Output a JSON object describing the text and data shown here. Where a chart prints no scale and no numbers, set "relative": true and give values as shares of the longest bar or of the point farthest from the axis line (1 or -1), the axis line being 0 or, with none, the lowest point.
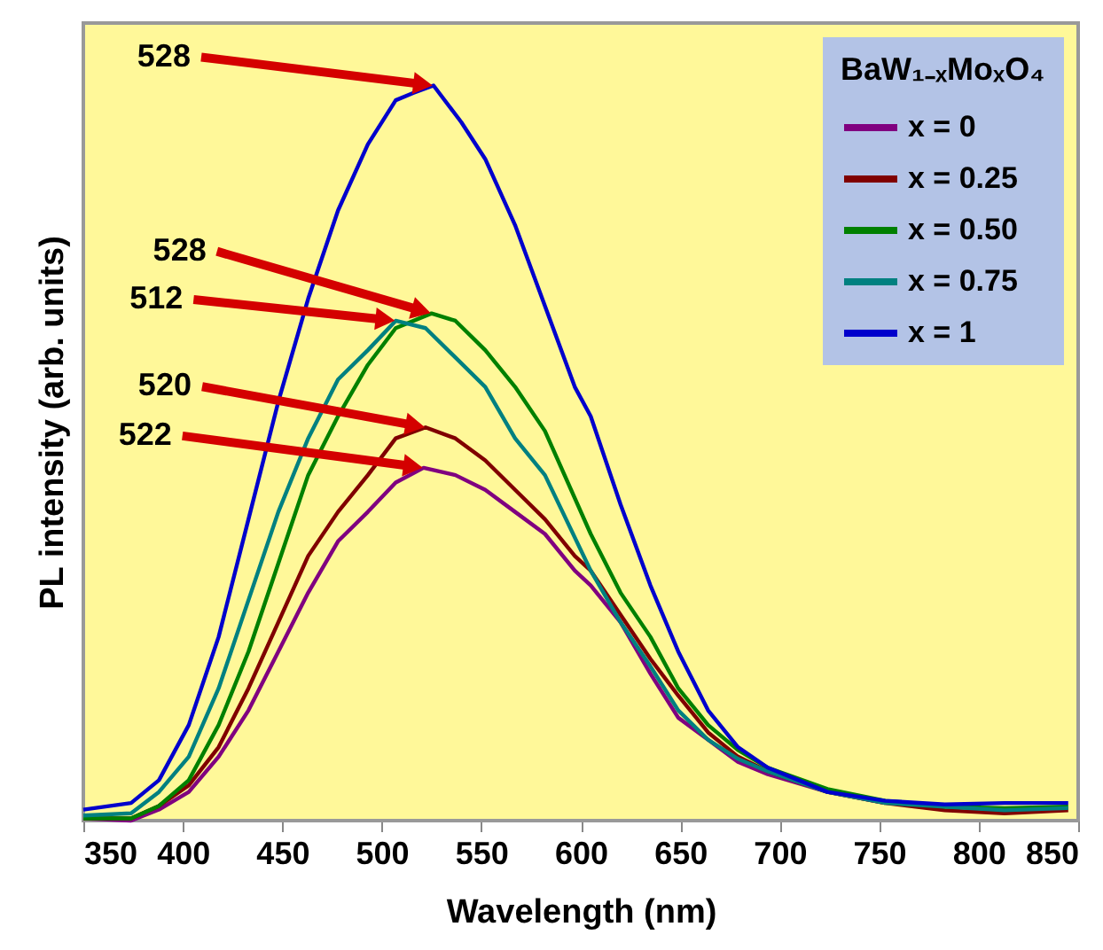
{
  "chart_data": {
    "type": "line",
    "relative": true,
    "xlabel": "Wavelength (nm)",
    "ylabel": "PL intensity (arb. units)",
    "legend_title": "BaW₁₋ₓMoₓO₄",
    "legend": "top right",
    "grid": false,
    "line_style": "solid",
    "marker": "none",
    "xlim": [
      350,
      850
    ],
    "xticks": [
      350,
      400,
      450,
      500,
      550,
      600,
      650,
      700,
      750,
      800,
      850
    ],
    "series": [
      {
        "name": "x = 0",
        "color": "#800080",
        "x": [
          350,
          374,
          388,
          403,
          418,
          433,
          448,
          463,
          478,
          493,
          507,
          521,
          537,
          552,
          567,
          582,
          597,
          605,
          620,
          635,
          649,
          664,
          679,
          694,
          724,
          753
        ],
        "values": [
          0.003,
          0.0,
          0.015,
          0.039,
          0.087,
          0.15,
          0.23,
          0.31,
          0.38,
          0.42,
          0.46,
          0.48,
          0.47,
          0.45,
          0.42,
          0.39,
          0.34,
          0.32,
          0.27,
          0.2,
          0.14,
          0.11,
          0.08,
          0.063,
          0.039,
          0.024
        ]
      },
      {
        "name": "x = 0.25",
        "color": "#800000",
        "x": [
          350,
          374,
          388,
          403,
          418,
          433,
          448,
          463,
          478,
          493,
          507,
          522,
          537,
          552,
          567,
          582,
          597,
          605,
          620,
          635,
          649,
          664,
          679,
          694,
          724,
          753,
          783,
          813,
          845
        ],
        "values": [
          0.003,
          0.003,
          0.02,
          0.048,
          0.1,
          0.18,
          0.27,
          0.36,
          0.42,
          0.47,
          0.52,
          0.535,
          0.52,
          0.49,
          0.45,
          0.41,
          0.36,
          0.34,
          0.28,
          0.22,
          0.17,
          0.12,
          0.087,
          0.067,
          0.039,
          0.024,
          0.014,
          0.01,
          0.014
        ]
      },
      {
        "name": "x = 0.50",
        "color": "#008000",
        "x": [
          350,
          374,
          388,
          403,
          418,
          433,
          448,
          463,
          478,
          493,
          507,
          525,
          537,
          552,
          567,
          582,
          605,
          620,
          635,
          649,
          664,
          679,
          694,
          724,
          753,
          783,
          813,
          845
        ],
        "values": [
          0.003,
          0.003,
          0.02,
          0.055,
          0.13,
          0.23,
          0.35,
          0.47,
          0.55,
          0.62,
          0.67,
          0.69,
          0.68,
          0.64,
          0.59,
          0.53,
          0.39,
          0.31,
          0.25,
          0.18,
          0.13,
          0.096,
          0.072,
          0.043,
          0.027,
          0.019,
          0.017,
          0.019
        ]
      },
      {
        "name": "x = 0.75",
        "color": "#008080",
        "x": [
          350,
          374,
          388,
          403,
          418,
          433,
          448,
          463,
          478,
          493,
          507,
          522,
          537,
          552,
          567,
          582,
          605,
          620,
          635,
          649,
          664,
          679,
          694,
          724,
          753,
          783,
          813,
          845
        ],
        "values": [
          0.007,
          0.01,
          0.039,
          0.087,
          0.18,
          0.3,
          0.42,
          0.52,
          0.6,
          0.64,
          0.68,
          0.67,
          0.63,
          0.59,
          0.52,
          0.47,
          0.34,
          0.27,
          0.21,
          0.15,
          0.11,
          0.084,
          0.067,
          0.039,
          0.024,
          0.019,
          0.014,
          0.017
        ]
      },
      {
        "name": "x = 1",
        "color": "#0000cc",
        "x": [
          350,
          374,
          388,
          403,
          418,
          433,
          448,
          463,
          478,
          493,
          507,
          516,
          526,
          540,
          552,
          567,
          582,
          597,
          605,
          620,
          635,
          649,
          664,
          679,
          694,
          724,
          753,
          783,
          813,
          845
        ],
        "values": [
          0.015,
          0.024,
          0.055,
          0.13,
          0.25,
          0.41,
          0.57,
          0.71,
          0.83,
          0.92,
          0.98,
          0.99,
          1.0,
          0.95,
          0.9,
          0.81,
          0.7,
          0.59,
          0.55,
          0.43,
          0.32,
          0.23,
          0.15,
          0.1,
          0.072,
          0.039,
          0.027,
          0.022,
          0.024,
          0.024
        ]
      }
    ],
    "annotations": [
      {
        "text": "528",
        "x": 526,
        "y": 1.0
      },
      {
        "text": "528",
        "x": 525,
        "y": 0.69
      },
      {
        "text": "512",
        "x": 507,
        "y": 0.68
      },
      {
        "text": "520",
        "x": 522,
        "y": 0.535
      },
      {
        "text": "522",
        "x": 521,
        "y": 0.48
      }
    ]
  }
}
